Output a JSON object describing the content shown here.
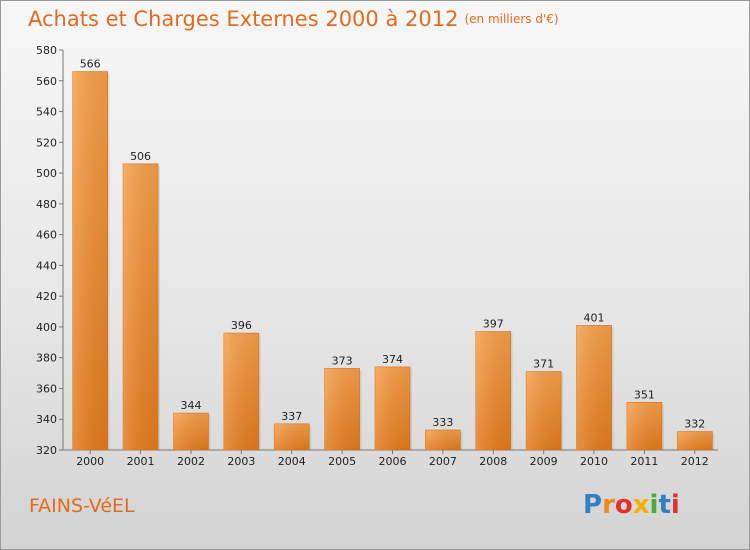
{
  "title": "Achats et Charges Externes 2000 à 2012",
  "unit_note": "(en milliers d'€)",
  "commune": "FAINS-VéEL",
  "logo": {
    "letters": [
      "P",
      "r",
      "o",
      "x",
      "i",
      "t",
      "i"
    ],
    "colors": [
      "#2f7fc1",
      "#f28a1e",
      "#e0332b",
      "#f2b300",
      "#4aa83c",
      "#2f7fc1",
      "#e0332b"
    ]
  },
  "chart_data": {
    "type": "bar",
    "categories": [
      "2000",
      "2001",
      "2002",
      "2003",
      "2004",
      "2005",
      "2006",
      "2007",
      "2008",
      "2009",
      "2010",
      "2011",
      "2012"
    ],
    "values": [
      566,
      506,
      344,
      396,
      337,
      373,
      374,
      333,
      397,
      371,
      401,
      351,
      332
    ],
    "ylim": [
      320,
      580
    ],
    "yticks": [
      320,
      340,
      360,
      380,
      400,
      420,
      440,
      460,
      480,
      500,
      520,
      540,
      560,
      580
    ],
    "bar_color": "#f0882e",
    "grid": false
  }
}
